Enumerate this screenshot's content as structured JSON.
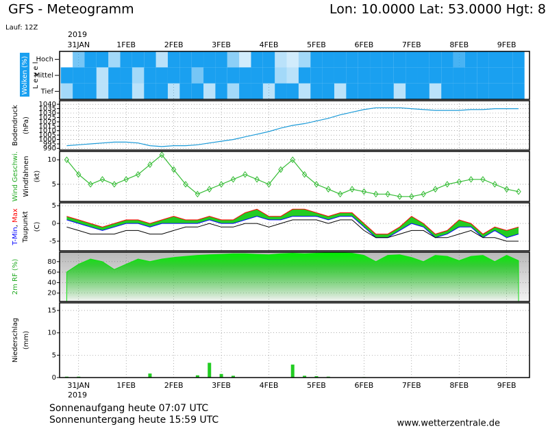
{
  "chart_data": {
    "title": "GFS - Meteogramm",
    "location": "Lon: 10.0000 Lat: 53.0000 Hgt: 8",
    "run": "Lauf: 12Z",
    "year": "2019",
    "sunrise": "Sonnenaufgang heute 07:07 UTC",
    "sunset": "Sonnenuntergang heute 15:59 UTC",
    "source": "www.wetterzentrale.de",
    "xlim": [
      -0.4,
      9.48
    ],
    "xticks": [
      {
        "value": 0,
        "label": "31JAN"
      },
      {
        "value": 1,
        "label": "1FEB"
      },
      {
        "value": 2,
        "label": "2FEB"
      },
      {
        "value": 3,
        "label": "3FEB"
      },
      {
        "value": 4,
        "label": "4FEB"
      },
      {
        "value": 5,
        "label": "5FEB"
      },
      {
        "value": 6,
        "label": "6FEB"
      },
      {
        "value": 7,
        "label": "7FEB"
      },
      {
        "value": 8,
        "label": "8FEB"
      },
      {
        "value": 9,
        "label": "9FEB"
      }
    ],
    "x": [
      -0.25,
      0,
      0.25,
      0.5,
      0.75,
      1,
      1.25,
      1.5,
      1.75,
      2,
      2.25,
      2.5,
      2.75,
      3,
      3.25,
      3.5,
      3.75,
      4,
      4.25,
      4.5,
      4.75,
      5,
      5.25,
      5.5,
      5.75,
      6,
      6.25,
      6.5,
      6.75,
      7,
      7.25,
      7.5,
      7.75,
      8,
      8.25,
      8.5,
      8.75,
      9,
      9.25
    ],
    "panels": [
      {
        "type": "heatmap",
        "y_labels": [
          "Wolken (%)",
          "L e v e l"
        ],
        "y_label_colors": [
          "#ffffff",
          "#000000"
        ],
        "color": "#1aa0f0",
        "series": [
          {
            "name": "Hoch",
            "values": [
              0,
              60,
              100,
              100,
              40,
              100,
              100,
              100,
              30,
              100,
              100,
              100,
              100,
              100,
              50,
              20,
              100,
              100,
              30,
              20,
              40,
              100,
              100,
              100,
              100,
              100,
              100,
              100,
              100,
              100,
              100,
              100,
              100,
              80,
              100,
              100,
              100,
              100,
              100
            ]
          },
          {
            "name": "Mittel",
            "values": [
              100,
              100,
              100,
              30,
              100,
              100,
              40,
              100,
              100,
              100,
              100,
              60,
              100,
              100,
              100,
              100,
              100,
              100,
              40,
              30,
              100,
              100,
              100,
              100,
              100,
              100,
              100,
              100,
              100,
              100,
              100,
              100,
              100,
              100,
              100,
              100,
              100,
              100,
              100
            ]
          },
          {
            "name": "Tief",
            "values": [
              40,
              100,
              100,
              30,
              100,
              100,
              30,
              100,
              100,
              30,
              100,
              100,
              30,
              100,
              40,
              100,
              100,
              30,
              100,
              100,
              30,
              100,
              100,
              30,
              100,
              100,
              100,
              100,
              30,
              100,
              100,
              30,
              100,
              100,
              100,
              100,
              100,
              100,
              100
            ]
          }
        ]
      },
      {
        "type": "line",
        "y_labels": [
          "Bodendruck",
          "(hPa)"
        ],
        "y_label_colors": [
          "#000000",
          "#000000"
        ],
        "color": "#1a9ad8",
        "grid": true,
        "ylim": [
          988,
          1044
        ],
        "yticks": [
          990,
          995,
          1000,
          1005,
          1010,
          1015,
          1020,
          1025,
          1030,
          1035,
          1040
        ],
        "values": [
          993,
          994,
          995,
          996,
          997,
          997,
          996,
          993,
          992,
          993,
          993,
          994,
          996,
          998,
          1000,
          1003,
          1006,
          1009,
          1013,
          1016,
          1018,
          1021,
          1024,
          1028,
          1031,
          1034,
          1036,
          1036,
          1036,
          1035,
          1034,
          1033,
          1033,
          1033,
          1034,
          1034,
          1035,
          1035,
          1035
        ]
      },
      {
        "type": "line",
        "markers": true,
        "y_labels": [
          "Wind Geschwi.",
          "Windfahnen",
          "(kt)"
        ],
        "y_label_colors": [
          "#22aa22",
          "#000000",
          "#000000"
        ],
        "color": "#33bb33",
        "grid": true,
        "ylim": [
          1.5,
          11.7
        ],
        "yticks": [
          5,
          10
        ],
        "values": [
          10,
          7,
          5,
          6,
          5,
          6,
          7,
          9,
          11,
          8,
          5,
          3,
          4,
          5,
          6,
          7,
          6,
          5,
          8,
          10,
          7,
          5,
          4,
          3,
          4,
          3.5,
          3,
          3,
          2.5,
          2.5,
          3,
          4,
          5,
          5.5,
          6,
          6,
          5,
          4,
          3.5
        ]
      },
      {
        "type": "band",
        "name_separator": ", ",
        "y_labels": [
          "(C)"
        ],
        "y_label_colors": [
          "#000000"
        ],
        "color": "#22cc22",
        "grid": true,
        "ylim": [
          -7.7,
          5.8
        ],
        "yticks": [
          5,
          0,
          -5
        ],
        "series": [
          {
            "name": "T-Min",
            "color": "#0000ff",
            "values": [
              1,
              0,
              -1,
              -2,
              -1,
              0,
              0,
              -1,
              0,
              0,
              0,
              0,
              1,
              0,
              0,
              1,
              2,
              1,
              1,
              2,
              2,
              2,
              1,
              2,
              2,
              -1,
              -4,
              -4,
              -2,
              0,
              -1,
              -4,
              -3,
              -1,
              -1,
              -4,
              -2,
              -4,
              -3
            ]
          },
          {
            "name": "Max",
            "color": "#ff0000",
            "values": [
              2,
              1,
              0,
              -1,
              0,
              1,
              1,
              0,
              1,
              2,
              1,
              1,
              2,
              1,
              1,
              3,
              4,
              2,
              2,
              4,
              4,
              3,
              2,
              3,
              3,
              0,
              -3,
              -3,
              -1,
              2,
              0,
              -3,
              -2,
              1,
              0,
              -3,
              -1,
              -2,
              -1
            ]
          },
          {
            "name": "Taupunkt",
            "color": "#000000",
            "values": [
              -1,
              -2,
              -3,
              -3,
              -3,
              -2,
              -2,
              -3,
              -3,
              -2,
              -1,
              -1,
              0,
              -1,
              -1,
              0,
              0,
              -1,
              0,
              1,
              1,
              1,
              0,
              1,
              1,
              -2,
              -4,
              -4,
              -3,
              -2,
              -2,
              -4,
              -4,
              -3,
              -2,
              -4,
              -4,
              -5,
              -5
            ]
          }
        ]
      },
      {
        "type": "area",
        "y_labels": [
          "2m RF (%)"
        ],
        "y_label_colors": [
          "#22aa22"
        ],
        "color": "#11dd11",
        "grid": true,
        "ylim": [
          4,
          98
        ],
        "yticks": [
          20,
          40,
          60,
          80
        ],
        "values": [
          60,
          75,
          85,
          80,
          65,
          75,
          85,
          80,
          85,
          88,
          90,
          92,
          93,
          94,
          95,
          95,
          94,
          93,
          95,
          96,
          95,
          96,
          97,
          97,
          96,
          92,
          80,
          92,
          93,
          88,
          80,
          92,
          90,
          82,
          90,
          92,
          80,
          92,
          82
        ]
      },
      {
        "type": "bar",
        "y_labels": [
          "Niederschlag",
          "(mm)"
        ],
        "y_label_colors": [
          "#000000",
          "#000000"
        ],
        "color": "#22cc22",
        "grid": true,
        "ylim": [
          0,
          16.7
        ],
        "yticks": [
          0,
          5,
          10,
          15
        ],
        "values": [
          0.2,
          0.2,
          0,
          0,
          0,
          0,
          0,
          0.9,
          0,
          0,
          0,
          0.5,
          3.3,
          0.8,
          0.4,
          0,
          0,
          0,
          0,
          2.9,
          0.4,
          0.3,
          0.2,
          0,
          0,
          0.1,
          0,
          0,
          0,
          0,
          0,
          0,
          0,
          0,
          0,
          0,
          0,
          0,
          0
        ]
      }
    ]
  }
}
